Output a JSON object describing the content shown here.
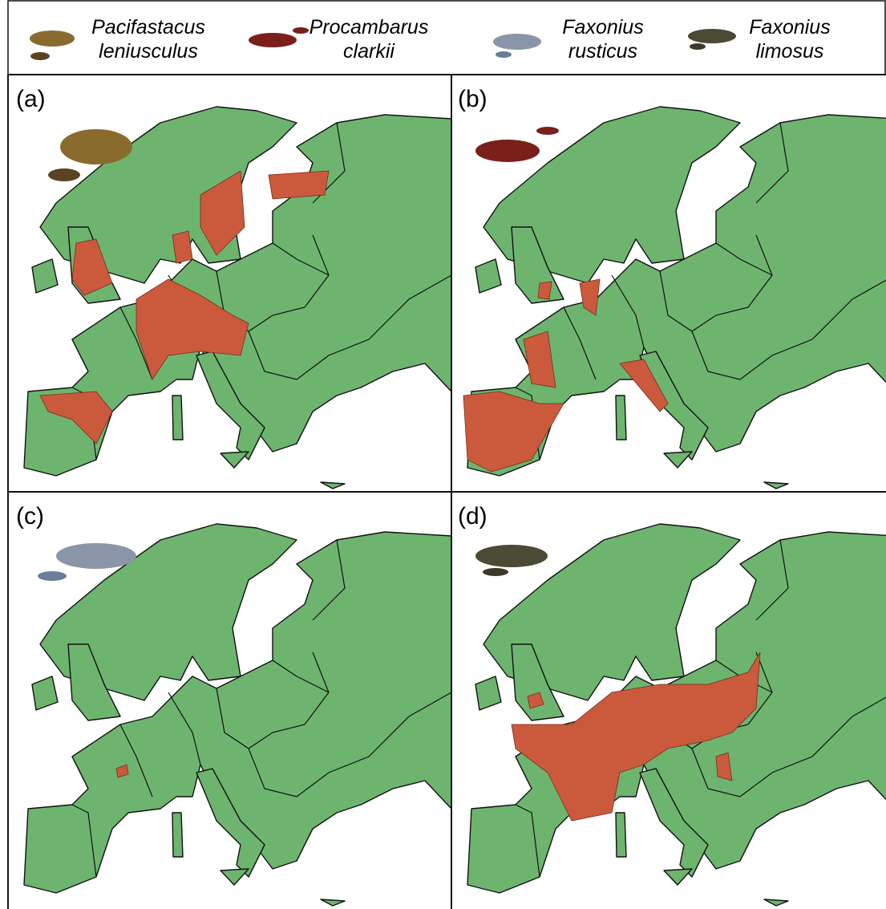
{
  "legend": [
    {
      "name": [
        "Pacifastacus",
        "leniusculus"
      ]
    },
    {
      "name": [
        "Procambarus",
        "clarkii"
      ]
    },
    {
      "name": [
        "Faxonius",
        "rusticus"
      ]
    },
    {
      "name": [
        "Faxonius",
        "limosus"
      ]
    }
  ],
  "panels": [
    {
      "label": "(a)"
    },
    {
      "label": "(b)"
    },
    {
      "label": "(c)"
    },
    {
      "label": "(d)"
    }
  ]
}
